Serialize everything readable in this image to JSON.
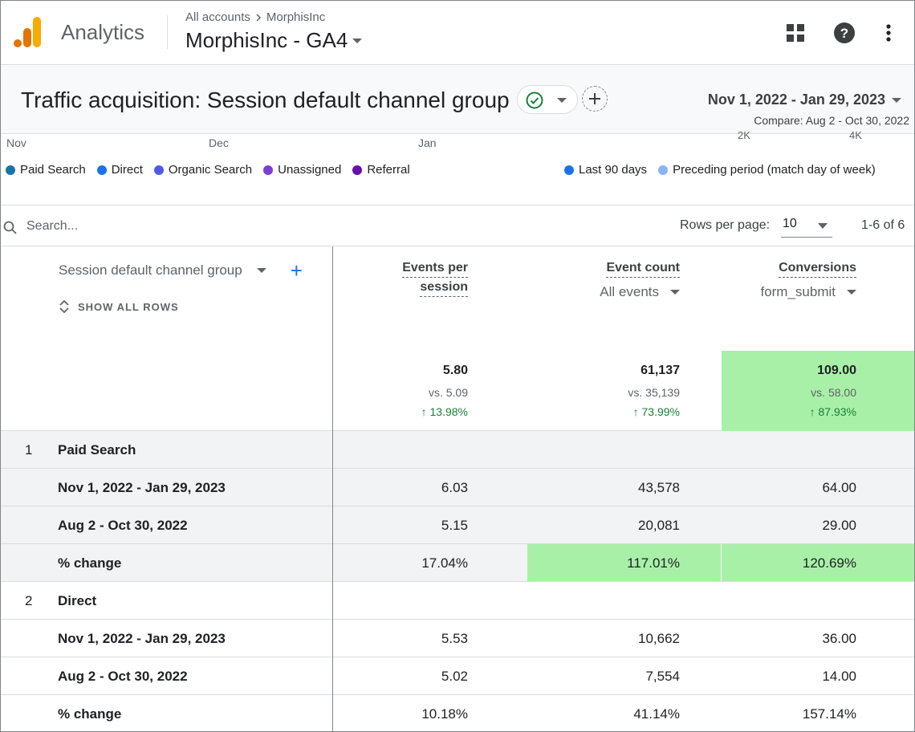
{
  "app": {
    "name": "Analytics"
  },
  "breadcrumb": {
    "parent": "All accounts",
    "child": "MorphisInc"
  },
  "property": {
    "name": "MorphisInc - GA4"
  },
  "report": {
    "title": "Traffic acquisition: Session default channel group",
    "date_range": "Nov 1, 2022 - Jan 29, 2023",
    "compare": "Compare: Aug 2 - Oct 30, 2022"
  },
  "chart_axis": {
    "nov": "Nov",
    "dec": "Dec",
    "jan": "Jan",
    "r1": "2K",
    "r2": "4K"
  },
  "legend": {
    "channels": [
      {
        "label": "Paid Search",
        "color": "#1a73a8"
      },
      {
        "label": "Direct",
        "color": "#1a73e8"
      },
      {
        "label": "Organic Search",
        "color": "#4f5be8"
      },
      {
        "label": "Unassigned",
        "color": "#7b3fd6"
      },
      {
        "label": "Referral",
        "color": "#6a0dad"
      }
    ],
    "periods": [
      {
        "label": "Last 90 days",
        "color": "#1a73e8"
      },
      {
        "label": "Preceding period (match day of week)",
        "color": "#8ab4f8"
      }
    ]
  },
  "search": {
    "placeholder": "Search..."
  },
  "pagination": {
    "rows_label": "Rows per page:",
    "rows_value": "10",
    "range": "1-6 of 6"
  },
  "table": {
    "dimension_header": "Session default channel group",
    "show_all": "SHOW ALL ROWS",
    "metrics": [
      {
        "line1": "Events per",
        "line2": "session",
        "sub": ""
      },
      {
        "line1": "Event count",
        "line2": "",
        "sub": "All events"
      },
      {
        "line1": "Conversions",
        "line2": "",
        "sub": "form_submit"
      }
    ],
    "totals": [
      {
        "value": "5.80",
        "vs": "vs. 5.09",
        "change": "↑ 13.98%"
      },
      {
        "value": "61,137",
        "vs": "vs. 35,139",
        "change": "↑ 73.99%"
      },
      {
        "value": "109.00",
        "vs": "vs. 58.00",
        "change": "↑ 87.93%"
      }
    ],
    "groups": [
      {
        "rank": "1",
        "name": "Paid Search",
        "rows": [
          {
            "label": "Nov 1, 2022 - Jan 29, 2023",
            "v": [
              "6.03",
              "43,578",
              "64.00"
            ]
          },
          {
            "label": "Aug 2 - Oct 30, 2022",
            "v": [
              "5.15",
              "20,081",
              "29.00"
            ]
          },
          {
            "label": "% change",
            "v": [
              "17.04%",
              "117.01%",
              "120.69%"
            ]
          }
        ]
      },
      {
        "rank": "2",
        "name": "Direct",
        "rows": [
          {
            "label": "Nov 1, 2022 - Jan 29, 2023",
            "v": [
              "5.53",
              "10,662",
              "36.00"
            ]
          },
          {
            "label": "Aug 2 - Oct 30, 2022",
            "v": [
              "5.02",
              "7,554",
              "14.00"
            ]
          },
          {
            "label": "% change",
            "v": [
              "10.18%",
              "41.14%",
              "157.14%"
            ]
          }
        ]
      }
    ]
  }
}
